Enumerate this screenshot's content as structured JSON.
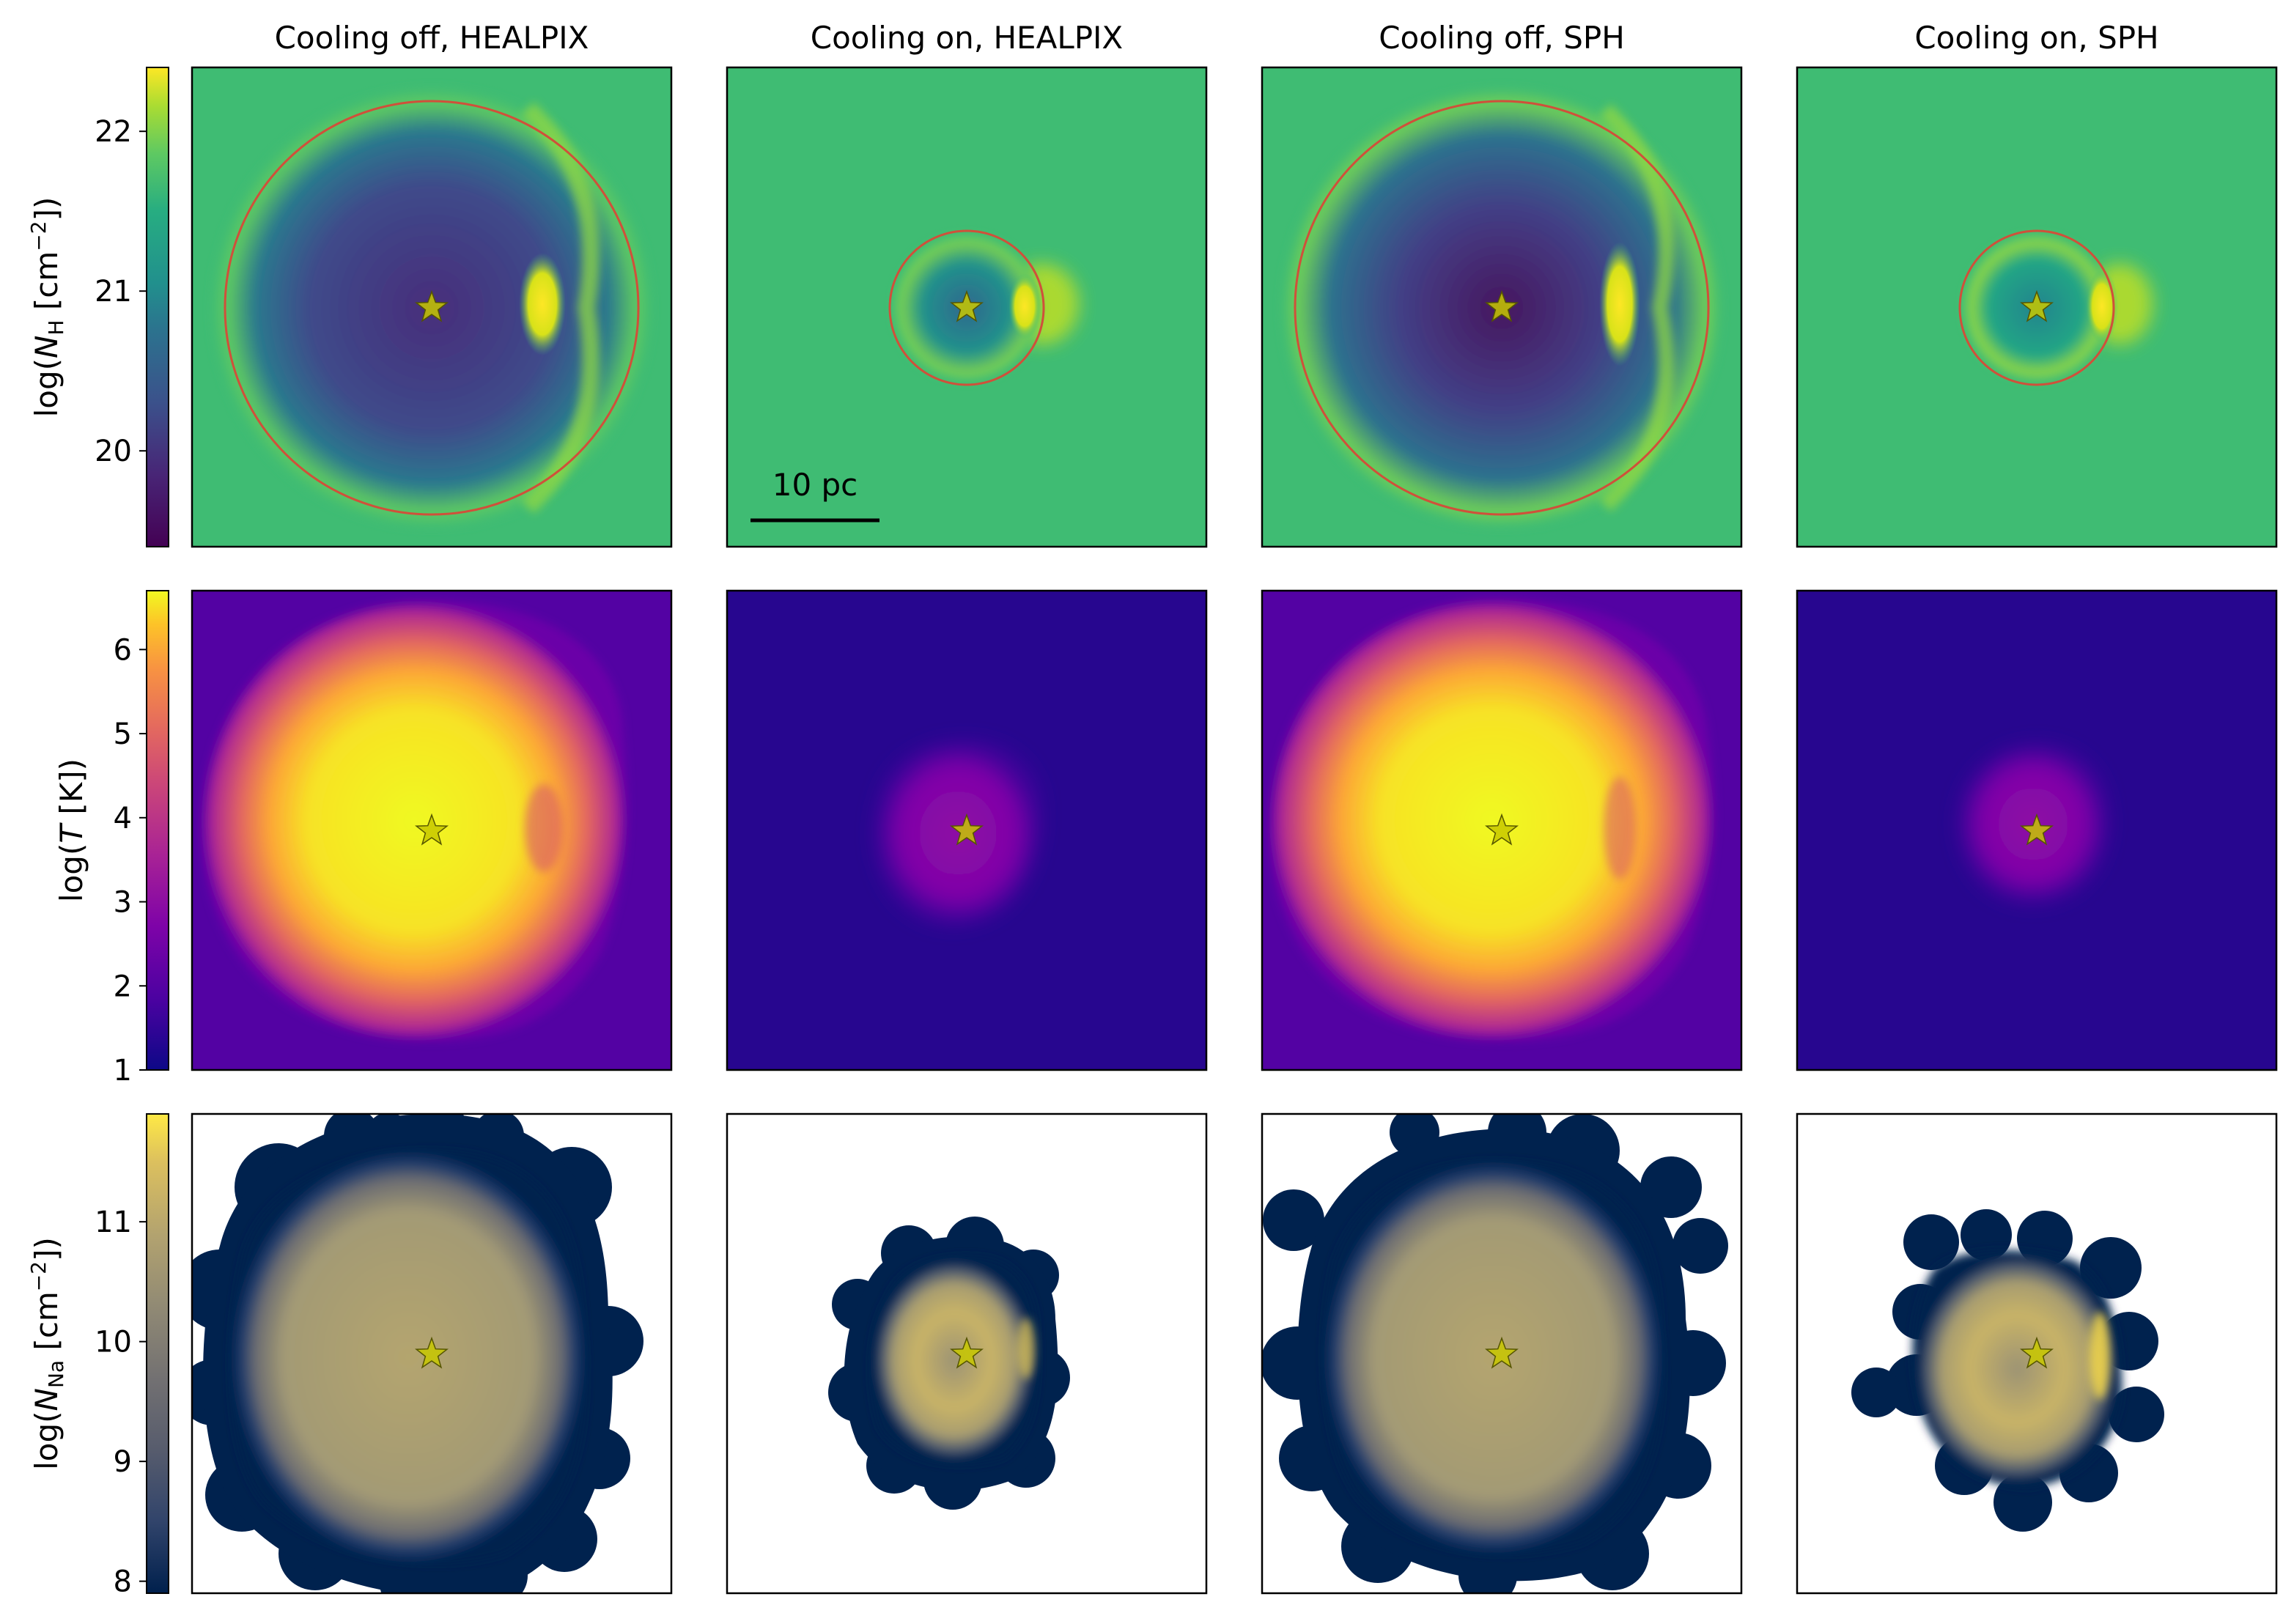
{
  "figure_title": "",
  "columns": [
    "Cooling off, HEALPIX",
    "Cooling on, HEALPIX",
    "Cooling off, SPH",
    "Cooling on, SPH"
  ],
  "scale_bar_label": "10 pc",
  "colors": {
    "frame": "#000000",
    "circle": "#d0503a",
    "star": "#c8c800",
    "star_edge": "#555500"
  },
  "chart_data": [
    {
      "type": "heatmap",
      "row": "column density of hydrogen",
      "ylabel": "log(N_H [cm^-2])",
      "ylabel_parts": {
        "pre": "log(",
        "var": "N",
        "sub": "H",
        "mid": " [cm",
        "sup": "−2",
        "post": "])"
      },
      "colormap": "viridis",
      "ylim": [
        19.4,
        22.4
      ],
      "ticks": [
        "20",
        "21",
        "22"
      ],
      "tick_values": [
        20,
        21,
        22
      ],
      "background_value": 21.25,
      "panels": [
        {
          "column": "Cooling off, HEALPIX",
          "bubble": "large",
          "center_value": 20.0,
          "shell_value": 22.0,
          "has_circle": true,
          "circle_radius_pc": 16
        },
        {
          "column": "Cooling on, HEALPIX",
          "bubble": "small",
          "center_value": 20.8,
          "shell_value": 21.9,
          "has_circle": true,
          "circle_radius_pc": 6
        },
        {
          "column": "Cooling off, SPH",
          "bubble": "large",
          "center_value": 19.7,
          "shell_value": 22.0,
          "has_circle": true,
          "circle_radius_pc": 16
        },
        {
          "column": "Cooling on, SPH",
          "bubble": "small",
          "center_value": 20.9,
          "shell_value": 22.1,
          "has_circle": true,
          "circle_radius_pc": 6
        }
      ]
    },
    {
      "type": "heatmap",
      "row": "temperature",
      "ylabel": "log(T [K])",
      "ylabel_parts": {
        "pre": "log(",
        "var": "T",
        "mid": " [K])"
      },
      "colormap": "plasma",
      "ylim": [
        1,
        6.7
      ],
      "ticks": [
        "1",
        "2",
        "3",
        "4",
        "5",
        "6"
      ],
      "tick_values": [
        1,
        2,
        3,
        4,
        5,
        6
      ],
      "background_value": 1.4,
      "panels": [
        {
          "column": "Cooling off, HEALPIX",
          "bubble": "large",
          "center_value": 6.5,
          "edge_value": 3.5
        },
        {
          "column": "Cooling on, HEALPIX",
          "bubble": "small",
          "center_value": 2.5
        },
        {
          "column": "Cooling off, SPH",
          "bubble": "large",
          "center_value": 6.5,
          "edge_value": 3.5
        },
        {
          "column": "Cooling on, SPH",
          "bubble": "small",
          "center_value": 2.4
        }
      ]
    },
    {
      "type": "heatmap",
      "row": "column density of sodium",
      "ylabel": "log(N_Na [cm^-2])",
      "ylabel_parts": {
        "pre": "log(",
        "var": "N",
        "sub": "Na",
        "mid": " [cm",
        "sup": "−2",
        "post": "])"
      },
      "colormap": "cividis",
      "ylim": [
        7.9,
        11.9
      ],
      "ticks": [
        "8",
        "9",
        "10",
        "11"
      ],
      "tick_values": [
        8,
        9,
        10,
        11
      ],
      "background_value": null,
      "panels": [
        {
          "column": "Cooling off, HEALPIX",
          "bubble": "large",
          "interior_value": 10.1,
          "edge_value": 8.0
        },
        {
          "column": "Cooling on, HEALPIX",
          "bubble": "small",
          "interior_value": 10.6,
          "edge_value": 8.0
        },
        {
          "column": "Cooling off, SPH",
          "bubble": "large",
          "interior_value": 10.3,
          "edge_value": 8.0
        },
        {
          "column": "Cooling on, SPH",
          "bubble": "small",
          "interior_value": 10.9,
          "edge_value": 8.0
        }
      ]
    }
  ]
}
